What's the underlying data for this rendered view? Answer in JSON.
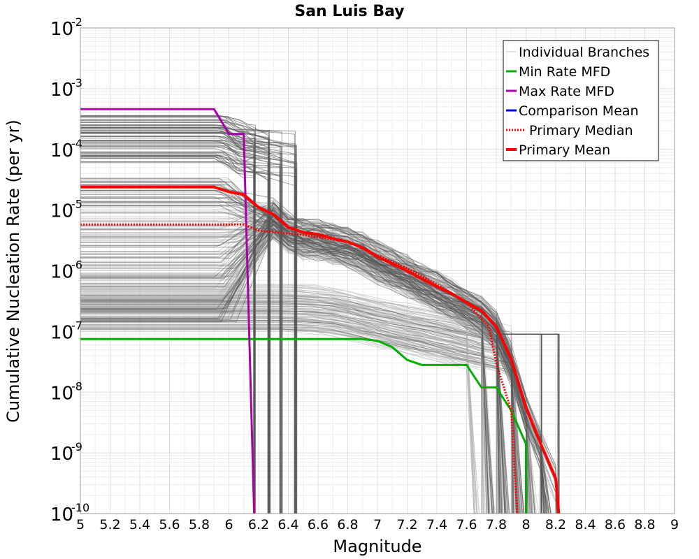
{
  "chart_data": {
    "type": "line",
    "title": "San Luis Bay",
    "xlabel": "Magnitude",
    "ylabel": "Cumulative Nucleation Rate (per yr)",
    "xlim": [
      5,
      9
    ],
    "ylim": [
      1e-10,
      0.01
    ],
    "yscale": "log",
    "grid": true,
    "legend_position": "top-right",
    "x_ticks": [
      "5",
      "5.2",
      "5.4",
      "5.6",
      "5.8",
      "6",
      "6.2",
      "6.4",
      "6.6",
      "6.8",
      "7",
      "7.2",
      "7.4",
      "7.6",
      "7.8",
      "8",
      "8.2",
      "8.4",
      "8.6",
      "8.8",
      "9"
    ],
    "y_ticks": [
      {
        "base": "10",
        "exp": "-2",
        "value": 0.01
      },
      {
        "base": "10",
        "exp": "-3",
        "value": 0.001
      },
      {
        "base": "10",
        "exp": "-4",
        "value": 0.0001
      },
      {
        "base": "10",
        "exp": "-5",
        "value": 1e-05
      },
      {
        "base": "10",
        "exp": "-6",
        "value": 1e-06
      },
      {
        "base": "10",
        "exp": "-7",
        "value": 1e-07
      },
      {
        "base": "10",
        "exp": "-8",
        "value": 1e-08
      },
      {
        "base": "10",
        "exp": "-9",
        "value": 1e-09
      },
      {
        "base": "10",
        "exp": "-10",
        "value": 1e-10
      }
    ],
    "legend": [
      {
        "label": "Individual Branches",
        "color": "#c8c8c8",
        "style": "solid",
        "width": 1
      },
      {
        "label": "Min Rate MFD",
        "color": "#00b000",
        "style": "solid",
        "width": 3
      },
      {
        "label": "Max Rate MFD",
        "color": "#aa00aa",
        "style": "solid",
        "width": 3
      },
      {
        "label": "Comparison Mean",
        "color": "#0000dd",
        "style": "solid",
        "width": 3
      },
      {
        "label": "Primary Median",
        "color": "#ff0000",
        "style": "dotted",
        "width": 3
      },
      {
        "label": "Primary Mean",
        "color": "#ff0000",
        "style": "solid",
        "width": 4
      }
    ],
    "series": [
      {
        "name": "Min Rate MFD",
        "color": "#00b000",
        "style": "solid",
        "width": 3,
        "points": [
          [
            5,
            7.5e-08
          ],
          [
            6.9,
            7.5e-08
          ],
          [
            7.0,
            7e-08
          ],
          [
            7.1,
            5.5e-08
          ],
          [
            7.2,
            3.4e-08
          ],
          [
            7.3,
            2.8e-08
          ],
          [
            7.6,
            2.8e-08
          ],
          [
            7.7,
            1.2e-08
          ],
          [
            7.8,
            1.2e-08
          ],
          [
            7.9,
            5e-09
          ],
          [
            8.0,
            1.4e-09
          ],
          [
            8.0,
            1e-10
          ]
        ]
      },
      {
        "name": "Max Rate MFD",
        "color": "#aa00aa",
        "style": "solid",
        "width": 3,
        "points": [
          [
            5,
            0.00046
          ],
          [
            5.9,
            0.00046
          ],
          [
            6.0,
            0.00018
          ],
          [
            6.1,
            0.00018
          ],
          [
            6.17,
            1e-10
          ]
        ]
      },
      {
        "name": "Primary Median",
        "color": "#ff0000",
        "style": "dotted",
        "width": 3,
        "points": [
          [
            5,
            5.8e-06
          ],
          [
            6.1,
            5.8e-06
          ],
          [
            6.2,
            4.6e-06
          ],
          [
            6.5,
            3.9e-06
          ],
          [
            6.8,
            3e-06
          ],
          [
            7.0,
            1.8e-06
          ],
          [
            7.2,
            1.1e-06
          ],
          [
            7.4,
            6e-07
          ],
          [
            7.6,
            3e-07
          ],
          [
            7.75,
            1.2e-07
          ],
          [
            7.8,
            3e-08
          ],
          [
            7.9,
            5e-09
          ],
          [
            7.94,
            1e-10
          ]
        ]
      },
      {
        "name": "Primary Mean",
        "color": "#ff0000",
        "style": "solid",
        "width": 4,
        "points": [
          [
            5,
            2.4e-05
          ],
          [
            5.9,
            2.4e-05
          ],
          [
            6.0,
            2e-05
          ],
          [
            6.1,
            1.8e-05
          ],
          [
            6.2,
            1.1e-05
          ],
          [
            6.3,
            8.5e-06
          ],
          [
            6.4,
            5.2e-06
          ],
          [
            6.5,
            4.3e-06
          ],
          [
            6.6,
            4e-06
          ],
          [
            6.7,
            3.4e-06
          ],
          [
            6.8,
            3e-06
          ],
          [
            6.9,
            2.4e-06
          ],
          [
            7.0,
            1.7e-06
          ],
          [
            7.1,
            1.3e-06
          ],
          [
            7.2,
            1e-06
          ],
          [
            7.3,
            7.3e-07
          ],
          [
            7.4,
            5.5e-07
          ],
          [
            7.5,
            4.2e-07
          ],
          [
            7.6,
            3e-07
          ],
          [
            7.7,
            2.2e-07
          ],
          [
            7.8,
            1.2e-07
          ],
          [
            7.9,
            3.5e-08
          ],
          [
            8.0,
            5.5e-09
          ],
          [
            8.1,
            1.4e-09
          ],
          [
            8.2,
            3.8e-10
          ],
          [
            8.22,
            1e-10
          ]
        ]
      }
    ],
    "branch_envelope": {
      "name": "Individual Branches",
      "upper_group_rate_range": [
        1.4e-07,
        3.5e-05
      ],
      "high_group_rate_range": [
        6e-05,
        0.00038
      ],
      "lower_group_rate_range": [
        1e-07,
        6e-07
      ],
      "vertical_drop_magnitudes": [
        6.17,
        6.27,
        6.35,
        6.45,
        8.1,
        8.22
      ]
    }
  }
}
